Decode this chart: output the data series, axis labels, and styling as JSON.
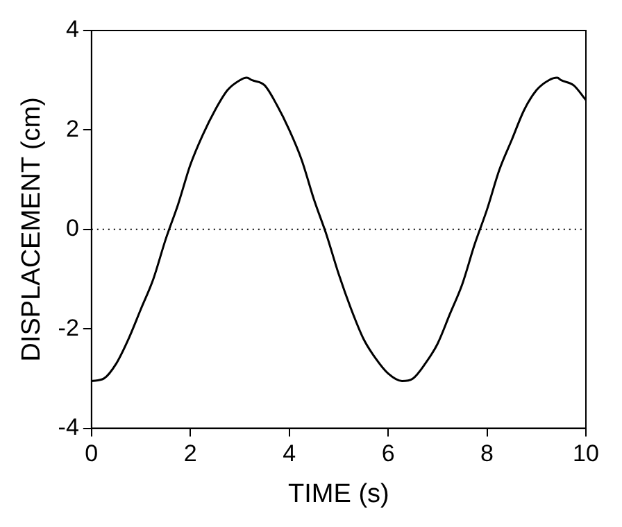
{
  "chart_data": {
    "type": "line",
    "xlabel": "TIME (s)",
    "ylabel": "DISPLACEMENT (cm)",
    "x": [
      0,
      0.25,
      0.5,
      0.75,
      1,
      1.25,
      1.5,
      1.75,
      2,
      2.25,
      2.5,
      2.75,
      3,
      3.14,
      3.25,
      3.5,
      3.75,
      4,
      4.25,
      4.5,
      4.75,
      5,
      5.25,
      5.5,
      5.75,
      6,
      6.28,
      6.5,
      6.75,
      7,
      7.25,
      7.5,
      7.75,
      8,
      8.25,
      8.5,
      8.75,
      9,
      9.25,
      9.42,
      9.5,
      9.75,
      10
    ],
    "series": [
      {
        "color": "#000000",
        "values": [
          -3.05,
          -3.0,
          -2.7,
          -2.2,
          -1.6,
          -1.0,
          -0.2,
          0.5,
          1.3,
          1.9,
          2.4,
          2.8,
          3.0,
          3.05,
          3.0,
          2.9,
          2.5,
          2.0,
          1.4,
          0.6,
          -0.1,
          -0.9,
          -1.6,
          -2.2,
          -2.6,
          -2.9,
          -3.05,
          -3.0,
          -2.7,
          -2.3,
          -1.7,
          -1.1,
          -0.3,
          0.4,
          1.2,
          1.8,
          2.4,
          2.8,
          3.0,
          3.05,
          3.0,
          2.9,
          2.6
        ]
      }
    ],
    "xlim": [
      0,
      10
    ],
    "xticks": [
      0,
      2,
      4,
      6,
      8,
      10
    ],
    "ylim": [
      -4,
      4
    ],
    "yticks": [
      -4,
      -2,
      0,
      2,
      4
    ],
    "ref_lines": [
      {
        "axis": "y",
        "value": 0,
        "color": "#000000",
        "line_style": "dotted"
      }
    ],
    "grid": false,
    "legend": false,
    "marker": "none",
    "line_style": "solid"
  }
}
